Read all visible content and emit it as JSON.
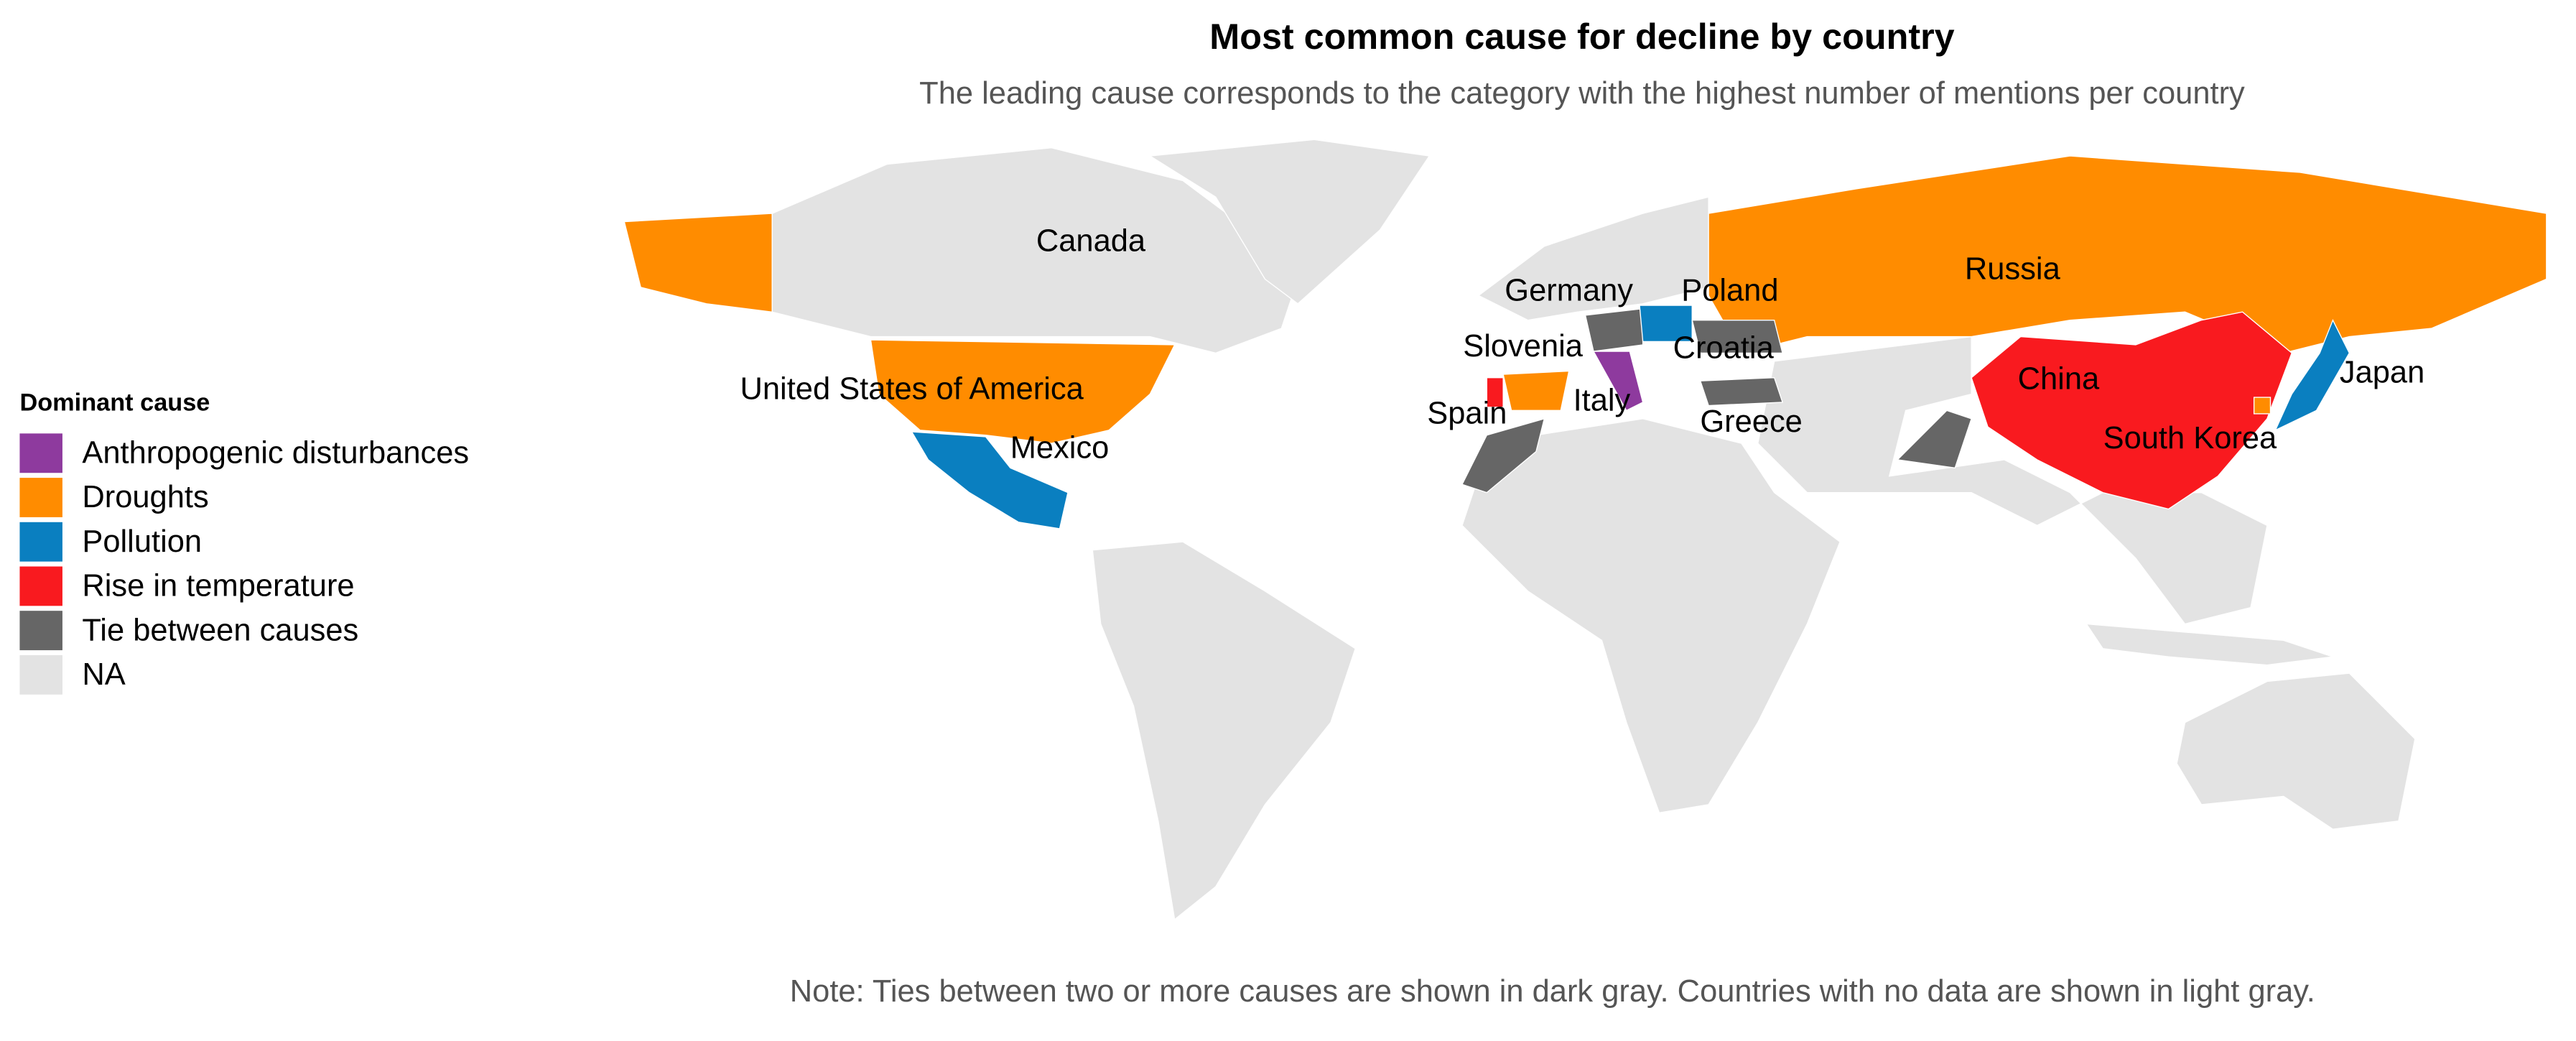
{
  "title": "Most common cause for decline by country",
  "subtitle": "The leading cause corresponds to the category with the highest number of mentions per country",
  "legend": {
    "title": "Dominant cause",
    "items": [
      {
        "label": "Anthropogenic disturbances",
        "color": "#8e3a9e"
      },
      {
        "label": "Droughts",
        "color": "#ff8c00"
      },
      {
        "label": "Pollution",
        "color": "#0a7fc0"
      },
      {
        "label": "Rise in temperature",
        "color": "#f91a1f"
      },
      {
        "label": "Tie between causes",
        "color": "#666666"
      },
      {
        "label": "NA",
        "color": "#e3e3e3"
      }
    ]
  },
  "labels": [
    "Canada",
    "Russia",
    "Germany",
    "Poland",
    "Slovenia",
    "Croatia",
    "United States of America",
    "China",
    "Japan",
    "Italy",
    "Spain",
    "Greece",
    "Mexico",
    "South Korea"
  ],
  "note": "Note: Ties between two or more causes are shown in dark gray. Countries with no data are shown in light gray."
}
